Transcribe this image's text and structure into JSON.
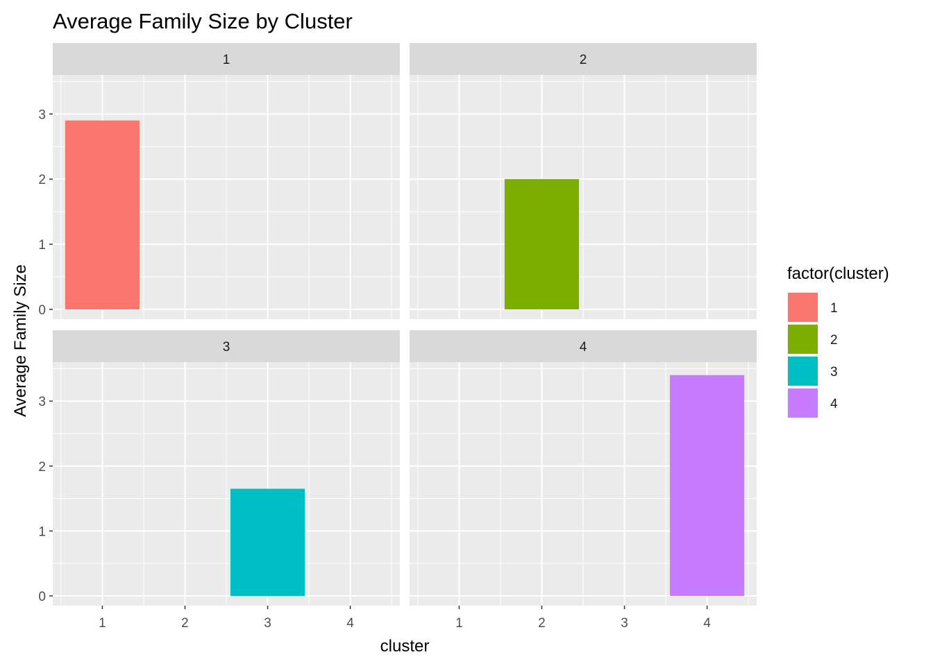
{
  "chart_data": {
    "type": "bar",
    "title": "Average Family Size by Cluster",
    "xlabel": "cluster",
    "ylabel": "Average Family Size",
    "categories": [
      "1",
      "2",
      "3",
      "4"
    ],
    "ylim": [
      -0.15,
      3.6
    ],
    "y_ticks": [
      "0",
      "1",
      "2",
      "3"
    ],
    "grid": true,
    "legend": {
      "title": "factor(cluster)",
      "placement": "right",
      "entries": [
        "1",
        "2",
        "3",
        "4"
      ]
    },
    "facets": [
      {
        "label": "1",
        "category": "1",
        "value": 2.9,
        "color": "#F8766D"
      },
      {
        "label": "2",
        "category": "2",
        "value": 2.0,
        "color": "#7CAE00"
      },
      {
        "label": "3",
        "category": "3",
        "value": 1.65,
        "color": "#00BFC4"
      },
      {
        "label": "4",
        "category": "4",
        "value": 3.4,
        "color": "#C77CFF"
      }
    ]
  }
}
